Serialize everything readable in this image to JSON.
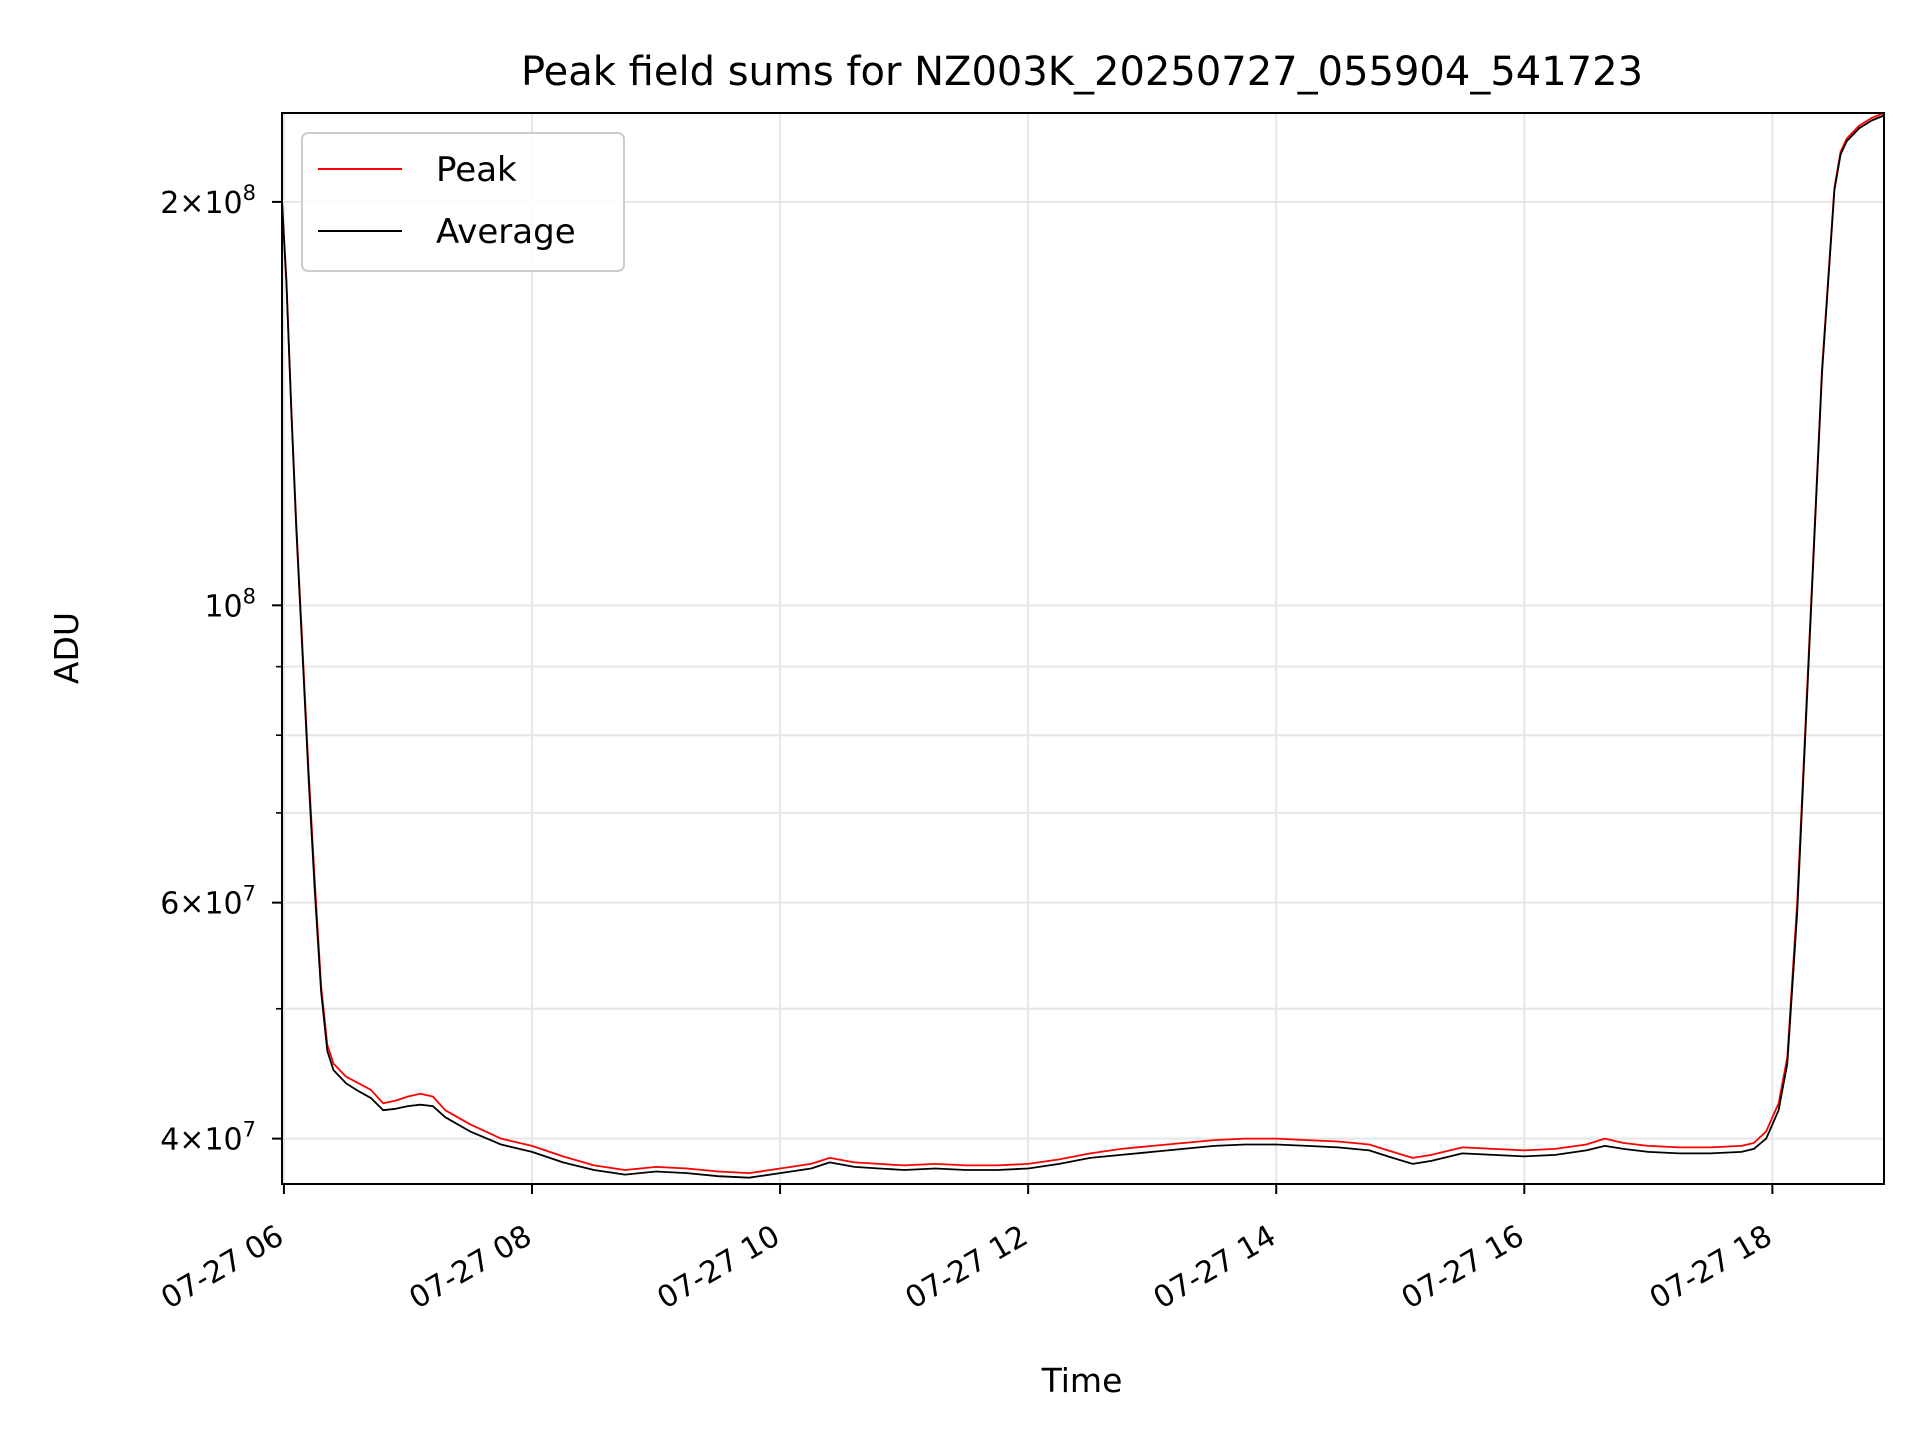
{
  "chart_data": {
    "type": "line",
    "title": "Peak field sums for NZ003K_20250727_055904_541723",
    "xlabel": "Time",
    "ylabel": "ADU",
    "yscale": "log",
    "x_unit": "hour",
    "xlim": [
      5.9844,
      18.9
    ],
    "ylim": [
      37000000,
      233000000
    ],
    "grid": true,
    "legend": "upper left",
    "x_ticks": [
      {
        "value": 6,
        "label": "07-27 06"
      },
      {
        "value": 8,
        "label": "07-27 08"
      },
      {
        "value": 10,
        "label": "07-27 10"
      },
      {
        "value": 12,
        "label": "07-27 12"
      },
      {
        "value": 14,
        "label": "07-27 14"
      },
      {
        "value": 16,
        "label": "07-27 16"
      },
      {
        "value": 18,
        "label": "07-27 18"
      }
    ],
    "y_major_ticks": [
      {
        "value": 40000000,
        "mant": "4",
        "exp": "7"
      },
      {
        "value": 60000000,
        "mant": "6",
        "exp": "7"
      },
      {
        "value": 100000000,
        "mant": "",
        "exp": "8"
      },
      {
        "value": 200000000,
        "mant": "2",
        "exp": "8"
      }
    ],
    "y_minor_ticks": [
      50000000,
      70000000,
      80000000,
      90000000
    ],
    "series": [
      {
        "name": "Peak",
        "color": "#ff0000",
        "x": [
          5.9844,
          6.02,
          6.06,
          6.1,
          6.15,
          6.2,
          6.25,
          6.3,
          6.35,
          6.4,
          6.5,
          6.6,
          6.7,
          6.8,
          6.9,
          7.0,
          7.1,
          7.2,
          7.3,
          7.5,
          7.75,
          8.0,
          8.25,
          8.5,
          8.75,
          9.0,
          9.25,
          9.5,
          9.75,
          10.0,
          10.25,
          10.4,
          10.6,
          10.8,
          11.0,
          11.25,
          11.5,
          11.75,
          12.0,
          12.25,
          12.5,
          12.75,
          13.0,
          13.25,
          13.5,
          13.75,
          14.0,
          14.25,
          14.5,
          14.75,
          14.9,
          15.1,
          15.25,
          15.5,
          15.75,
          16.0,
          16.25,
          16.5,
          16.65,
          16.8,
          17.0,
          17.25,
          17.5,
          17.75,
          17.85,
          17.95,
          18.05,
          18.12,
          18.2,
          18.3,
          18.4,
          18.5,
          18.55,
          18.6,
          18.7,
          18.8,
          18.9
        ],
        "y": [
          200000000,
          175000000,
          140000000,
          115000000,
          93000000,
          75000000,
          62000000,
          52000000,
          47000000,
          45500000,
          44500000,
          44000000,
          43500000,
          42500000,
          42700000,
          43000000,
          43200000,
          43000000,
          42000000,
          41000000,
          40000000,
          39500000,
          38800000,
          38200000,
          37900000,
          38100000,
          38000000,
          37800000,
          37700000,
          38000000,
          38300000,
          38700000,
          38400000,
          38300000,
          38200000,
          38300000,
          38200000,
          38200000,
          38300000,
          38600000,
          39000000,
          39300000,
          39500000,
          39700000,
          39900000,
          40000000,
          40000000,
          39900000,
          39800000,
          39600000,
          39200000,
          38700000,
          38900000,
          39400000,
          39300000,
          39200000,
          39300000,
          39600000,
          40000000,
          39700000,
          39500000,
          39400000,
          39400000,
          39500000,
          39700000,
          40500000,
          42500000,
          46000000,
          60000000,
          95000000,
          150000000,
          205000000,
          218000000,
          223000000,
          228000000,
          231000000,
          233000000
        ]
      },
      {
        "name": "Average",
        "color": "#000000",
        "x": [
          5.9844,
          6.02,
          6.06,
          6.1,
          6.15,
          6.2,
          6.25,
          6.3,
          6.35,
          6.4,
          6.5,
          6.6,
          6.7,
          6.8,
          6.9,
          7.0,
          7.1,
          7.2,
          7.3,
          7.5,
          7.75,
          8.0,
          8.25,
          8.5,
          8.75,
          9.0,
          9.25,
          9.5,
          9.75,
          10.0,
          10.25,
          10.4,
          10.6,
          10.8,
          11.0,
          11.25,
          11.5,
          11.75,
          12.0,
          12.25,
          12.5,
          12.75,
          13.0,
          13.25,
          13.5,
          13.75,
          14.0,
          14.25,
          14.5,
          14.75,
          14.9,
          15.1,
          15.25,
          15.5,
          15.75,
          16.0,
          16.25,
          16.5,
          16.65,
          16.8,
          17.0,
          17.25,
          17.5,
          17.75,
          17.85,
          17.95,
          18.05,
          18.12,
          18.2,
          18.3,
          18.4,
          18.5,
          18.55,
          18.6,
          18.7,
          18.8,
          18.9
        ],
        "y": [
          200000000,
          174000000,
          139000000,
          114000000,
          92000000,
          74000000,
          61000000,
          51500000,
          46500000,
          45000000,
          44000000,
          43400000,
          42900000,
          42000000,
          42100000,
          42300000,
          42400000,
          42300000,
          41500000,
          40500000,
          39600000,
          39100000,
          38400000,
          37900000,
          37600000,
          37800000,
          37700000,
          37500000,
          37400000,
          37700000,
          38000000,
          38400000,
          38100000,
          38000000,
          37900000,
          38000000,
          37900000,
          37900000,
          38000000,
          38300000,
          38700000,
          38900000,
          39100000,
          39300000,
          39500000,
          39600000,
          39600000,
          39500000,
          39400000,
          39200000,
          38800000,
          38300000,
          38500000,
          39000000,
          38900000,
          38800000,
          38900000,
          39200000,
          39500000,
          39300000,
          39100000,
          39000000,
          39000000,
          39100000,
          39300000,
          40000000,
          42000000,
          45500000,
          59000000,
          94000000,
          149000000,
          204000000,
          217000000,
          222000000,
          227000000,
          230000000,
          232000000
        ]
      }
    ]
  }
}
